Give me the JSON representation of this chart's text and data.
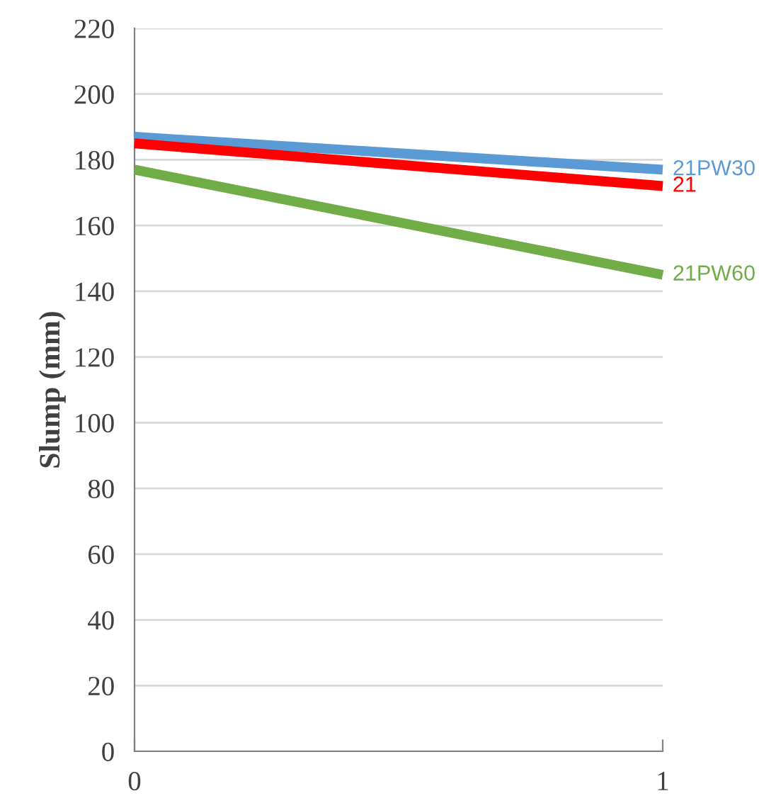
{
  "chart_data": {
    "type": "line",
    "ylabel": "Slump (mm)",
    "x": [
      0,
      1
    ],
    "series": [
      {
        "name": "21PW30",
        "color": "#5b9bd5",
        "values": [
          187,
          177
        ]
      },
      {
        "name": "21",
        "color": "#ff0000",
        "values": [
          185,
          172
        ]
      },
      {
        "name": "21PW60",
        "color": "#70ad47",
        "values": [
          177,
          145
        ]
      }
    ],
    "xlim": [
      0,
      1
    ],
    "xticks": [
      0,
      1
    ],
    "ylim": [
      0,
      220
    ],
    "yticks": [
      0,
      20,
      40,
      60,
      80,
      100,
      120,
      140,
      160,
      180,
      200,
      220
    ],
    "grid": "y",
    "marker": "none",
    "line_style": "solid"
  }
}
